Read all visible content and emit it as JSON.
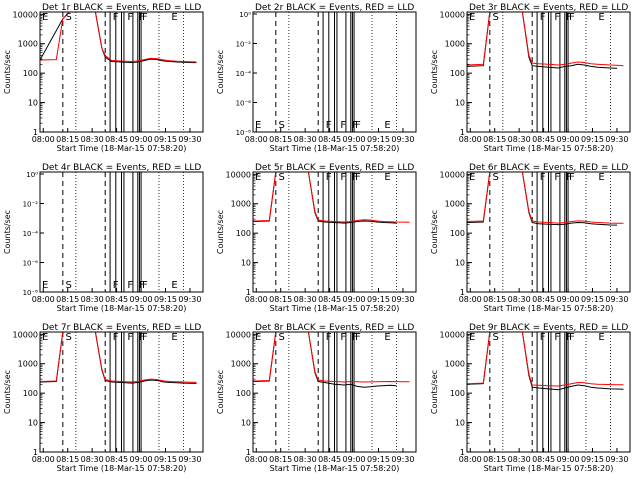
{
  "chart_data": {
    "type": "line",
    "xlabel": "Start Time (18-Mar-15 07:58:20)",
    "ylabel": "Counts/sec",
    "x_ticks": [
      "08:00",
      "08:15",
      "08:30",
      "08:45",
      "09:00",
      "09:15",
      "09:30"
    ],
    "y_ticks": [
      "1",
      "10",
      "100",
      "1000",
      "10000"
    ],
    "y_scale": "log",
    "x_range_minutes": [
      0,
      100
    ],
    "ylim": [
      1,
      12000
    ],
    "legend_text": "BLACK = Events, RED = LLD",
    "colors": {
      "events": "#000000",
      "lld": "#ff0000"
    },
    "dashed_lines_min": [
      14,
      40
    ],
    "dotted_lines_min": [
      22,
      73,
      88
    ],
    "solid_lines_min": [
      43,
      46.5,
      50,
      51.5,
      57,
      60,
      61,
      62
    ],
    "event_letters": [
      {
        "t": 15,
        "label": "S"
      },
      {
        "t": 44,
        "label": "F"
      },
      {
        "t": 53,
        "label": "F"
      },
      {
        "t": 60,
        "label": "F"
      },
      {
        "t": 62,
        "label": "F"
      },
      {
        "t": 80,
        "label": "E"
      }
    ],
    "panels": [
      {
        "title": "Det 1r BLACK = Events, RED = LLD",
        "variant": "full",
        "series": [
          {
            "name": "Events",
            "x": [
              0,
              14,
              18,
              20,
              22,
              26,
              30,
              34,
              38,
              40,
              44,
              50,
              56,
              60,
              64,
              68,
              72,
              76,
              80,
              84,
              88,
              92,
              96
            ],
            "y": [
              280,
              7000,
              12000,
              12000,
              12000,
              12000,
              12000,
              12000,
              700,
              350,
              250,
              240,
              230,
              240,
              270,
              300,
              290,
              260,
              250,
              240,
              235,
              230,
              228
            ]
          },
          {
            "name": "LLD",
            "x": [
              0,
              10,
              14,
              18,
              22,
              26,
              30,
              34,
              38,
              40,
              44,
              50,
              56,
              60,
              64,
              68,
              72,
              76,
              80,
              84,
              88,
              92,
              96
            ],
            "y": [
              280,
              290,
              7000,
              12000,
              12000,
              12000,
              12000,
              12000,
              700,
              400,
              270,
              260,
              250,
              260,
              290,
              320,
              310,
              280,
              265,
              255,
              250,
              245,
              240
            ]
          }
        ]
      },
      {
        "title": "Det 2r BLACK = Events, RED = LLD",
        "variant": "empty",
        "series": []
      },
      {
        "title": "Det 3r BLACK = Events, RED = LLD",
        "variant": "full",
        "series": [
          {
            "name": "Events",
            "x": [
              0,
              10,
              14,
              18,
              22,
              26,
              30,
              34,
              38,
              40,
              44,
              50,
              56,
              60,
              64,
              68,
              72,
              76,
              80,
              84,
              88,
              92
            ],
            "y": [
              170,
              180,
              12000,
              12000,
              12000,
              12000,
              12000,
              12000,
              350,
              180,
              170,
              160,
              150,
              170,
              180,
              200,
              190,
              170,
              160,
              155,
              150,
              145
            ]
          },
          {
            "name": "LLD",
            "x": [
              0,
              10,
              14,
              18,
              22,
              26,
              30,
              34,
              38,
              40,
              44,
              50,
              56,
              60,
              64,
              68,
              72,
              76,
              80,
              84,
              88,
              92,
              96
            ],
            "y": [
              190,
              200,
              12000,
              12000,
              12000,
              12000,
              12000,
              12000,
              400,
              220,
              210,
              200,
              190,
              200,
              220,
              240,
              230,
              210,
              200,
              195,
              190,
              185,
              180
            ]
          }
        ]
      },
      {
        "title": "Det 4r BLACK = Events, RED = LLD",
        "variant": "empty",
        "series": []
      },
      {
        "title": "Det 5r BLACK = Events, RED = LLD",
        "variant": "full",
        "series": [
          {
            "name": "Events",
            "x": [
              0,
              10,
              14,
              18,
              22,
              26,
              30,
              34,
              38,
              40,
              44,
              50,
              56,
              60,
              64,
              68,
              72,
              76,
              80,
              84,
              88
            ],
            "y": [
              250,
              260,
              12000,
              12000,
              12000,
              12000,
              12000,
              12000,
              500,
              260,
              240,
              230,
              220,
              230,
              250,
              260,
              255,
              240,
              230,
              225,
              220
            ]
          },
          {
            "name": "LLD",
            "x": [
              0,
              10,
              14,
              18,
              22,
              26,
              30,
              34,
              38,
              40,
              44,
              50,
              56,
              60,
              64,
              68,
              72,
              76,
              80,
              84,
              88,
              92,
              96
            ],
            "y": [
              260,
              270,
              12000,
              12000,
              12000,
              12000,
              12000,
              12000,
              550,
              280,
              260,
              250,
              240,
              250,
              270,
              285,
              280,
              260,
              250,
              245,
              240,
              238,
              236
            ]
          }
        ]
      },
      {
        "title": "Det 6r BLACK = Events, RED = LLD",
        "variant": "full",
        "series": [
          {
            "name": "Events",
            "x": [
              0,
              10,
              14,
              18,
              22,
              26,
              30,
              34,
              38,
              40,
              44,
              50,
              56,
              60,
              64,
              68,
              72,
              76,
              80,
              84,
              88,
              92
            ],
            "y": [
              230,
              240,
              12000,
              12000,
              12000,
              12000,
              12000,
              12000,
              500,
              230,
              210,
              200,
              195,
              200,
              220,
              230,
              225,
              210,
              200,
              195,
              190,
              188
            ]
          },
          {
            "name": "LLD",
            "x": [
              0,
              10,
              14,
              18,
              22,
              26,
              30,
              34,
              38,
              40,
              44,
              50,
              56,
              60,
              64,
              68,
              72,
              76,
              80,
              84,
              88,
              92,
              96
            ],
            "y": [
              250,
              260,
              12000,
              12000,
              12000,
              12000,
              12000,
              12000,
              550,
              260,
              240,
              230,
              220,
              230,
              250,
              262,
              258,
              240,
              230,
              225,
              220,
              218,
              216
            ]
          }
        ]
      },
      {
        "title": "Det 7r BLACK = Events, RED = LLD",
        "variant": "full",
        "series": [
          {
            "name": "Events",
            "x": [
              0,
              10,
              14,
              18,
              22,
              26,
              30,
              34,
              38,
              40,
              44,
              50,
              56,
              60,
              64,
              68,
              72,
              76,
              80,
              84,
              88,
              92,
              96
            ],
            "y": [
              240,
              250,
              12000,
              12000,
              12000,
              12000,
              12000,
              12000,
              600,
              270,
              240,
              230,
              220,
              230,
              260,
              280,
              270,
              240,
              230,
              225,
              220,
              218,
              215
            ]
          },
          {
            "name": "LLD",
            "x": [
              0,
              10,
              14,
              18,
              22,
              26,
              30,
              34,
              38,
              40,
              44,
              50,
              56,
              60,
              64,
              68,
              72,
              76,
              80,
              84,
              88,
              92,
              96
            ],
            "y": [
              250,
              260,
              12000,
              12000,
              12000,
              12000,
              12000,
              12000,
              650,
              290,
              260,
              250,
              240,
              250,
              280,
              300,
              290,
              260,
              250,
              245,
              240,
              236,
              232
            ]
          }
        ]
      },
      {
        "title": "Det 8r BLACK = Events, RED = LLD",
        "variant": "full",
        "series": [
          {
            "name": "Events",
            "x": [
              0,
              10,
              14,
              18,
              22,
              26,
              30,
              34,
              38,
              40,
              44,
              50,
              56,
              60,
              64,
              68,
              72,
              76,
              80,
              84,
              88
            ],
            "y": [
              250,
              260,
              12000,
              12000,
              12000,
              12000,
              12000,
              12000,
              500,
              250,
              230,
              200,
              190,
              200,
              170,
              160,
              165,
              175,
              180,
              185,
              180
            ]
          },
          {
            "name": "LLD",
            "x": [
              0,
              10,
              14,
              18,
              22,
              26,
              30,
              34,
              38,
              40,
              44,
              50,
              56,
              60,
              64,
              68,
              72,
              76,
              80,
              84,
              88,
              92,
              96
            ],
            "y": [
              260,
              270,
              12000,
              12000,
              12000,
              12000,
              12000,
              12000,
              550,
              280,
              260,
              250,
              240,
              250,
              245,
              240,
              242,
              245,
              248,
              250,
              248,
              246,
              244
            ]
          }
        ]
      },
      {
        "title": "Det 9r BLACK = Events, RED = LLD",
        "variant": "full",
        "series": [
          {
            "name": "Events",
            "x": [
              0,
              10,
              14,
              18,
              22,
              26,
              30,
              34,
              38,
              40,
              44,
              50,
              56,
              60,
              64,
              68,
              72,
              76,
              80,
              84,
              88,
              92,
              96
            ],
            "y": [
              200,
              210,
              12000,
              12000,
              12000,
              12000,
              12000,
              12000,
              400,
              160,
              150,
              140,
              130,
              150,
              170,
              190,
              180,
              160,
              150,
              145,
              140,
              138,
              135
            ]
          },
          {
            "name": "LLD",
            "x": [
              0,
              10,
              14,
              18,
              22,
              26,
              30,
              34,
              38,
              40,
              44,
              50,
              56,
              60,
              64,
              68,
              72,
              76,
              80,
              84,
              88,
              92,
              96
            ],
            "y": [
              210,
              220,
              12000,
              12000,
              12000,
              12000,
              12000,
              12000,
              450,
              190,
              185,
              180,
              175,
              190,
              210,
              230,
              225,
              210,
              200,
              198,
              196,
              194,
              192
            ]
          }
        ]
      }
    ]
  }
}
